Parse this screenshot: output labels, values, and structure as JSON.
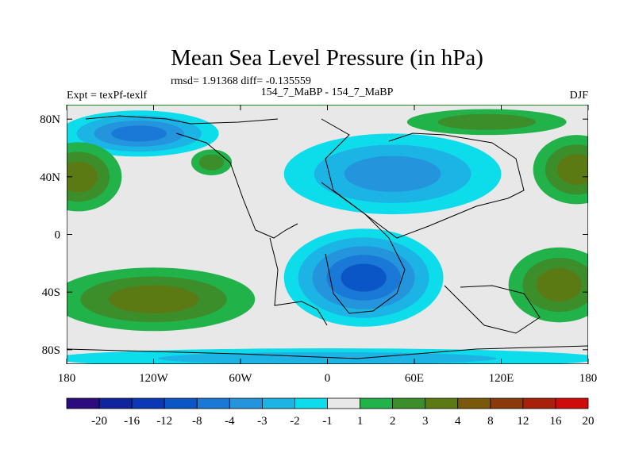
{
  "chart_data": {
    "type": "heatmap",
    "title": "Mean Sea Level Pressure (in hPa)",
    "stats": "rmsd= 1.91368 diff= -0.135559",
    "left_label": "Expt = texPf-texlf",
    "center_label": "154_7_MaBP - 154_7_MaBP",
    "right_label": "DJF",
    "x_ticks": [
      {
        "lon": -180,
        "label": "180"
      },
      {
        "lon": -120,
        "label": "120W"
      },
      {
        "lon": -60,
        "label": "60W"
      },
      {
        "lon": 0,
        "label": "0"
      },
      {
        "lon": 60,
        "label": "60E"
      },
      {
        "lon": 120,
        "label": "120E"
      },
      {
        "lon": 180,
        "label": "180"
      }
    ],
    "y_ticks": [
      {
        "lat": 80,
        "label": "80N"
      },
      {
        "lat": 40,
        "label": "40N"
      },
      {
        "lat": 0,
        "label": "0"
      },
      {
        "lat": -40,
        "label": "40S"
      },
      {
        "lat": -80,
        "label": "80S"
      }
    ],
    "xlim": [
      -180,
      180
    ],
    "ylim": [
      -90,
      90
    ],
    "levels": [
      "-20",
      "-16",
      "-12",
      "-8",
      "-4",
      "-3",
      "-2",
      "-1",
      "1",
      "2",
      "3",
      "4",
      "8",
      "12",
      "16",
      "20"
    ],
    "colors": [
      "#2b0b7d",
      "#10249e",
      "#0a38b6",
      "#0a56c6",
      "#1a78d6",
      "#2494dc",
      "#1bb4e4",
      "#0ddcea",
      "#e8e8e8",
      "#22b24a",
      "#3c8e2a",
      "#5c7a14",
      "#7a5a0a",
      "#8a3a0a",
      "#a8200a",
      "#d00a0a"
    ],
    "regions": [
      {
        "name": "arctic-pacific-low",
        "cx": -130,
        "cy": 70,
        "rx": 55,
        "ry": 16,
        "classes": [
          7,
          6,
          5,
          4
        ]
      },
      {
        "name": "north-atlantic-high",
        "cx": -80,
        "cy": 50,
        "rx": 14,
        "ry": 9,
        "classes": [
          9,
          10
        ]
      },
      {
        "name": "eurasia-low",
        "cx": 45,
        "cy": 42,
        "rx": 75,
        "ry": 28,
        "classes": [
          7,
          6,
          5
        ]
      },
      {
        "name": "arctic-siberia-high",
        "cx": 110,
        "cy": 78,
        "rx": 55,
        "ry": 9,
        "classes": [
          9,
          10
        ]
      },
      {
        "name": "north-pacific-west-high",
        "cx": -172,
        "cy": 40,
        "rx": 30,
        "ry": 24,
        "classes": [
          9,
          10,
          11
        ]
      },
      {
        "name": "north-pacific-east-high",
        "cx": 172,
        "cy": 45,
        "rx": 30,
        "ry": 24,
        "classes": [
          9,
          10,
          11
        ]
      },
      {
        "name": "southern-africa-low",
        "cx": 25,
        "cy": -30,
        "rx": 55,
        "ry": 34,
        "classes": [
          7,
          6,
          5,
          4,
          3
        ]
      },
      {
        "name": "south-pacific-high",
        "cx": -120,
        "cy": -45,
        "rx": 70,
        "ry": 22,
        "classes": [
          9,
          10,
          11
        ]
      },
      {
        "name": "south-indian-high",
        "cx": 160,
        "cy": -35,
        "rx": 35,
        "ry": 26,
        "classes": [
          9,
          10,
          11
        ]
      },
      {
        "name": "southern-ocean-band-low",
        "cx": 0,
        "cy": -86,
        "rx": 190,
        "ry": 7,
        "classes": [
          7,
          6
        ]
      }
    ]
  }
}
